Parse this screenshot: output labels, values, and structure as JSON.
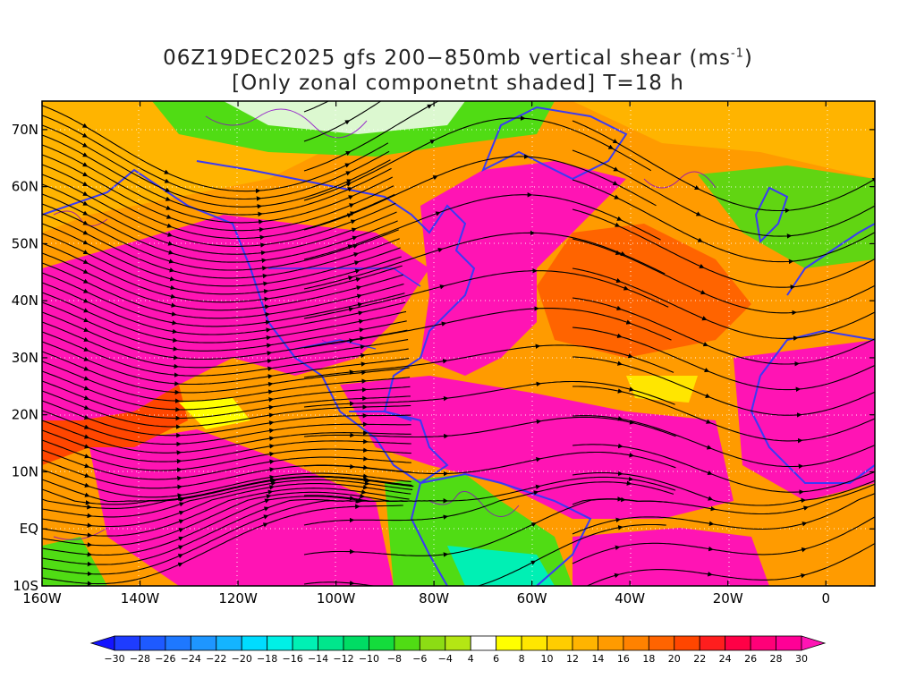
{
  "title": {
    "line1_prefix": "06Z19DEC2025 gfs 200−850mb vertical shear (ms",
    "line1_sup": "-1",
    "line1_suffix": ")",
    "line2": "[Only zonal componetnt shaded] T=18 h"
  },
  "map": {
    "lat_labels": [
      "70N",
      "60N",
      "50N",
      "40N",
      "30N",
      "20N",
      "10N",
      "EQ",
      "10S"
    ],
    "lat_values": [
      70,
      60,
      50,
      40,
      30,
      20,
      10,
      0,
      -10
    ],
    "lon_labels": [
      "160W",
      "140W",
      "120W",
      "100W",
      "80W",
      "60W",
      "40W",
      "20W",
      "0"
    ],
    "lon_values": [
      -160,
      -140,
      -120,
      -100,
      -80,
      -60,
      -40,
      -20,
      0
    ],
    "lon_range": [
      -160,
      10
    ],
    "lat_range": [
      -10,
      75
    ],
    "gridlines": "dotted",
    "overlay": "streamlines",
    "coastline_color": "#3a3af5"
  },
  "colorbar": {
    "labels": [
      "−30",
      "−28",
      "−26",
      "−24",
      "−22",
      "−20",
      "−18",
      "−16",
      "−14",
      "−12",
      "−10",
      "−8",
      "−6",
      "−4",
      "4",
      "6",
      "8",
      "10",
      "12",
      "14",
      "16",
      "18",
      "20",
      "22",
      "24",
      "26",
      "28",
      "30"
    ],
    "colors": [
      "#1414ff",
      "#1e3cff",
      "#1e5aff",
      "#1e78ff",
      "#1e96ff",
      "#14b4ff",
      "#00dcff",
      "#00f0e6",
      "#00f0b4",
      "#00e68c",
      "#00dc64",
      "#14dc3c",
      "#50dc14",
      "#8cdc14",
      "#b4e614",
      "#ffffff",
      "#ffff00",
      "#ffe600",
      "#ffcd00",
      "#ffb400",
      "#ff9b00",
      "#ff8200",
      "#ff6400",
      "#ff4600",
      "#ff1e1e",
      "#ff0046",
      "#ff0078",
      "#ff0096",
      "#ff14b4"
    ]
  }
}
